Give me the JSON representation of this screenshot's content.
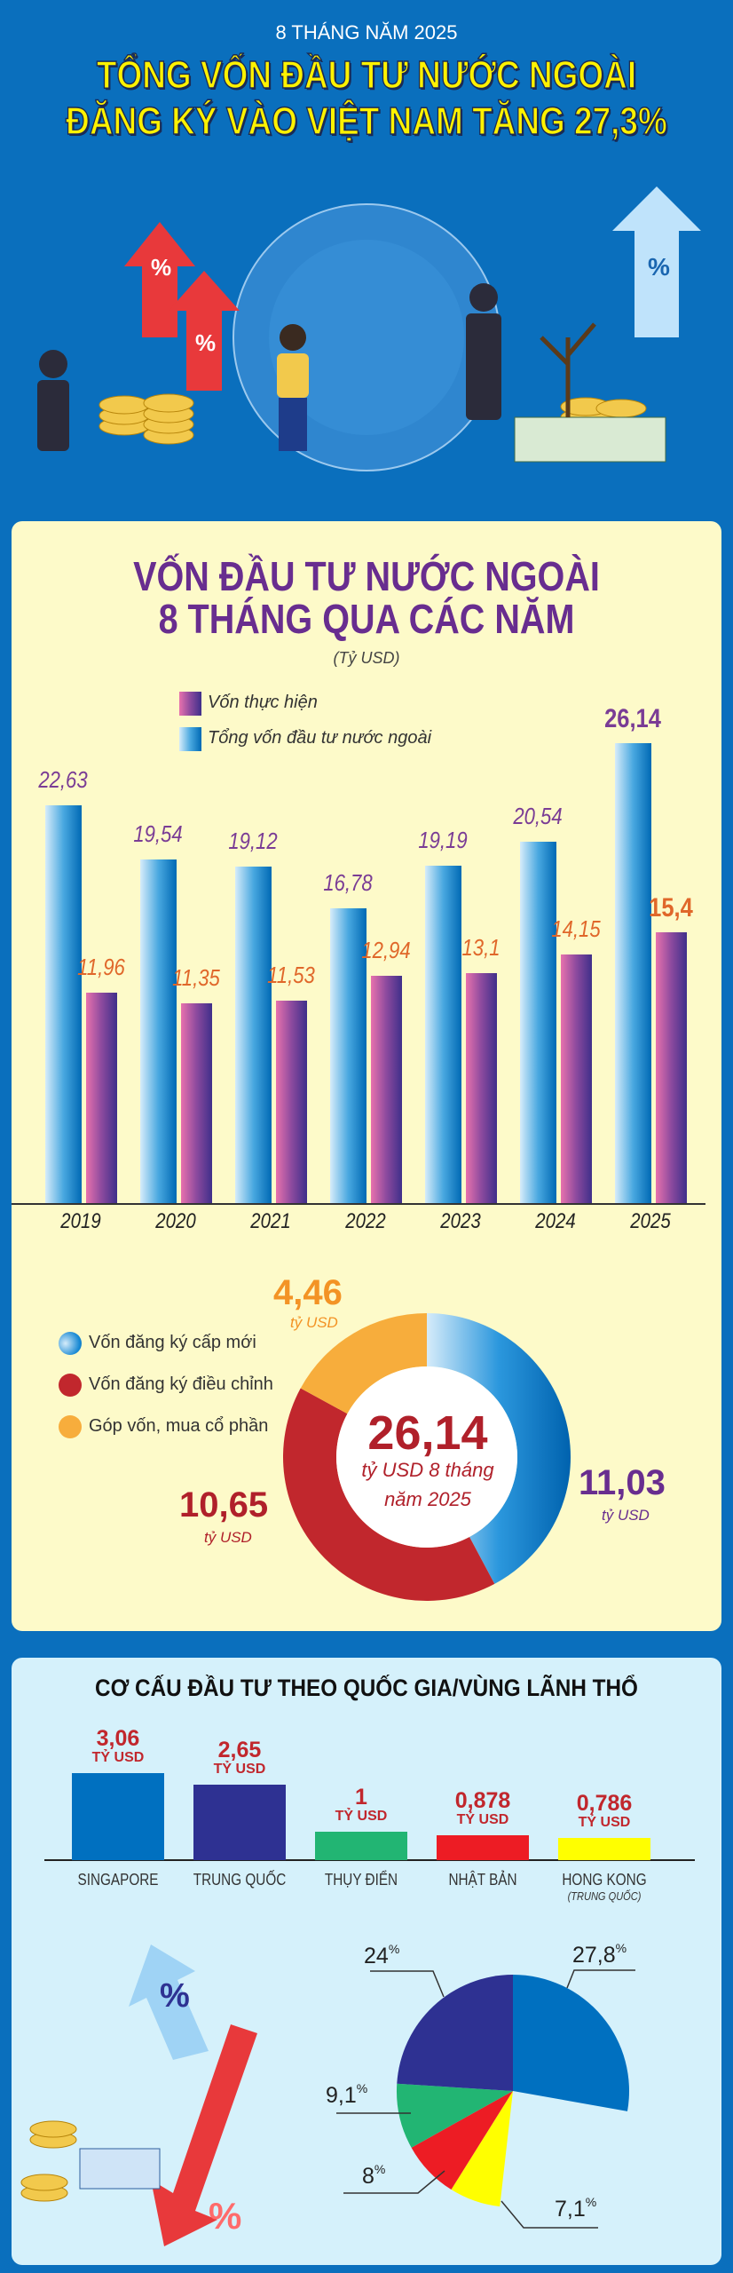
{
  "header": {
    "subtitle": "8 THÁNG NĂM 2025",
    "title_line1": "TỔNG VỐN ĐẦU TƯ NƯỚC NGOÀI",
    "title_line2": "ĐĂNG KÝ VÀO VIỆT NAM TĂNG 27,3%",
    "illustration_badge": "%"
  },
  "colors": {
    "background": "#0a6fbd",
    "panel_yellow": "#fdfac9",
    "panel_cyan": "#d5f1fb",
    "title_purple": "#682d8f",
    "accent_red": "#c1272d",
    "header_yellow": "#fff200"
  },
  "chart_data": [
    {
      "type": "bar",
      "title_line1": "VỐN ĐẦU TƯ NƯỚC NGOÀI",
      "title_line2": "8 THÁNG QUA CÁC NĂM",
      "unit": "(Tỷ USD)",
      "categories": [
        "2019",
        "2020",
        "2021",
        "2022",
        "2023",
        "2024",
        "2025"
      ],
      "series": [
        {
          "name": "Tổng vốn đầu tư nước ngoài",
          "color": "#1e88d0",
          "values": [
            22.63,
            19.54,
            19.12,
            16.78,
            19.19,
            20.54,
            26.14
          ],
          "labels": [
            "22,63",
            "19,54",
            "19,12",
            "16,78",
            "19,19",
            "20,54",
            "26,14"
          ]
        },
        {
          "name": "Vốn thực hiện",
          "color": "#8c4a9e",
          "values": [
            11.96,
            11.35,
            11.53,
            12.94,
            13.1,
            14.15,
            15.4
          ],
          "labels": [
            "11,96",
            "11,35",
            "11,53",
            "12,94",
            "13,1",
            "14,15",
            "15,4"
          ]
        }
      ],
      "legend_order": [
        "Vốn thực hiện",
        "Tổng vốn đầu tư nước ngoài"
      ],
      "legend": "top-center",
      "grid": false
    },
    {
      "type": "pie",
      "variant": "donut",
      "center_value": "26,14",
      "center_text_line1": "tỷ USD 8 tháng",
      "center_text_line2": "năm 2025",
      "unit": "tỷ USD",
      "slices": [
        {
          "name": "Vốn đăng ký cấp mới",
          "value": 11.03,
          "label": "11,03",
          "color": "#1a8ad4",
          "label_color": "#682d8f"
        },
        {
          "name": "Vốn đăng ký điều chỉnh",
          "value": 10.65,
          "label": "10,65",
          "color": "#c1272d",
          "label_color": "#b0202a"
        },
        {
          "name": "Góp vốn, mua cổ phần",
          "value": 4.46,
          "label": "4,46",
          "color": "#f7ad3c",
          "label_color": "#f39325"
        }
      ],
      "legend": "left"
    },
    {
      "type": "bar",
      "title": "CƠ CẤU ĐẦU TƯ THEO QUỐC GIA/VÙNG LÃNH THỔ",
      "unit": "TỶ USD",
      "categories": [
        "SINGAPORE",
        "TRUNG QUỐC",
        "THỤY ĐIỂN",
        "NHẬT BẢN",
        "HONG KONG"
      ],
      "category_notes": [
        "",
        "",
        "",
        "",
        "(TRUNG QUỐC)"
      ],
      "values": [
        3.06,
        2.65,
        1,
        0.878,
        0.786
      ],
      "labels": [
        "3,06",
        "2,65",
        "1",
        "0,878",
        "0,786"
      ],
      "colors": [
        "#0070c0",
        "#2e3192",
        "#22b573",
        "#ed1c24",
        "#ffff00"
      ]
    },
    {
      "type": "pie",
      "percent_sign": "%",
      "slices": [
        {
          "name": "SINGAPORE",
          "value": 27.8,
          "label": "27,8",
          "color": "#0070c0"
        },
        {
          "name": "TRUNG QUỐC",
          "value": 24,
          "label": "24",
          "color": "#2e3192"
        },
        {
          "name": "THỤY ĐIỂN",
          "value": 9.1,
          "label": "9,1",
          "color": "#22b573"
        },
        {
          "name": "NHẬT BẢN",
          "value": 8,
          "label": "8",
          "color": "#ed1c24"
        },
        {
          "name": "HONG KONG",
          "value": 7.1,
          "label": "7,1",
          "color": "#ffff00"
        }
      ]
    }
  ]
}
